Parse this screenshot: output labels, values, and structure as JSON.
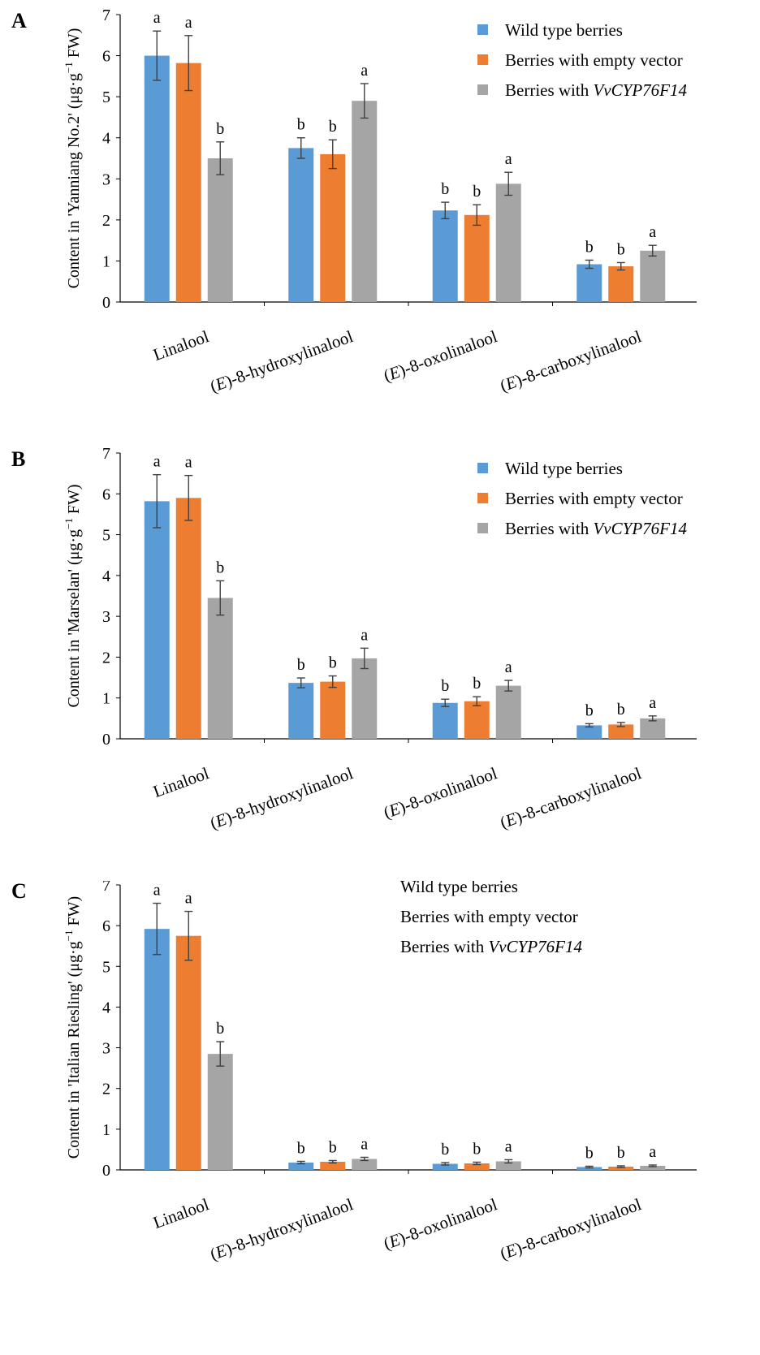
{
  "colors": {
    "wild_type": "#5b9bd5",
    "empty_vector": "#ed7d31",
    "vvcyp": "#a5a5a5",
    "axis": "#000000",
    "error_bar": "#404040"
  },
  "chart_data": [
    {
      "type": "bar",
      "panel": "A",
      "title": "",
      "ylabel": "Content in 'Yanniang No.2' (μg·g⁻¹ FW)",
      "ylabel_parts": [
        "Content in 'Yanniang No.2' (μg·g",
        "−1",
        " FW)"
      ],
      "xlabel": "",
      "ylim": [
        0,
        7
      ],
      "yticks": [
        "0",
        "1",
        "2",
        "3",
        "4",
        "5",
        "6",
        "7"
      ],
      "categories": [
        {
          "italic": "",
          "rest": "Linalool"
        },
        {
          "italic": "E",
          "rest": ")-8-hydroxylinalool"
        },
        {
          "italic": "E",
          "rest": ")-8-oxolinalool"
        },
        {
          "italic": "E",
          "rest": ")-8-carboxylinalool"
        }
      ],
      "series": [
        {
          "name": "Wild type berries",
          "values": [
            6.0,
            3.75,
            2.23,
            0.92
          ],
          "errors": [
            0.6,
            0.25,
            0.2,
            0.1
          ],
          "letters": [
            "a",
            "b",
            "b",
            "b"
          ]
        },
        {
          "name": "Berries with empty vector",
          "values": [
            5.82,
            3.6,
            2.12,
            0.87
          ],
          "errors": [
            0.67,
            0.35,
            0.25,
            0.09
          ],
          "letters": [
            "a",
            "b",
            "b",
            "b"
          ]
        },
        {
          "name": "Berries with VvCYP76F14",
          "values": [
            3.5,
            4.9,
            2.88,
            1.25
          ],
          "errors": [
            0.4,
            0.42,
            0.28,
            0.13
          ],
          "letters": [
            "b",
            "a",
            "a",
            "a"
          ]
        }
      ],
      "legend": [
        {
          "text": "Wild type berries",
          "italic": "",
          "swatch": true
        },
        {
          "text": "Berries with empty vector",
          "italic": "",
          "swatch": true
        },
        {
          "text": "Berries with ",
          "italic": "VvCYP76F14",
          "swatch": true
        }
      ],
      "legend_position": "top-right"
    },
    {
      "type": "bar",
      "panel": "B",
      "title": "",
      "ylabel": "Content in 'Marselan' (μg·g⁻¹ FW)",
      "ylabel_parts": [
        "Content in 'Marselan' (μg·g",
        "−1",
        " FW)"
      ],
      "xlabel": "",
      "ylim": [
        0,
        7
      ],
      "yticks": [
        "0",
        "1",
        "2",
        "3",
        "4",
        "5",
        "6",
        "7"
      ],
      "categories": [
        {
          "italic": "",
          "rest": "Linalool"
        },
        {
          "italic": "E",
          "rest": ")-8-hydroxylinalool"
        },
        {
          "italic": "E",
          "rest": ")-8-oxolinalool"
        },
        {
          "italic": "E",
          "rest": ")-8-carboxylinalool"
        }
      ],
      "series": [
        {
          "name": "Wild type berries",
          "values": [
            5.82,
            1.37,
            0.88,
            0.33
          ],
          "errors": [
            0.65,
            0.12,
            0.09,
            0.04
          ],
          "letters": [
            "a",
            "b",
            "b",
            "b"
          ]
        },
        {
          "name": "Berries with empty vector",
          "values": [
            5.9,
            1.4,
            0.92,
            0.35
          ],
          "errors": [
            0.55,
            0.14,
            0.11,
            0.05
          ],
          "letters": [
            "a",
            "b",
            "b",
            "b"
          ]
        },
        {
          "name": "Berries with VvCYP76F14",
          "values": [
            3.45,
            1.97,
            1.3,
            0.5
          ],
          "errors": [
            0.42,
            0.25,
            0.13,
            0.06
          ],
          "letters": [
            "b",
            "a",
            "a",
            "a"
          ]
        }
      ],
      "legend": [
        {
          "text": "Wild type berries",
          "italic": "",
          "swatch": true
        },
        {
          "text": "Berries with empty vector",
          "italic": "",
          "swatch": true
        },
        {
          "text": "Berries with ",
          "italic": "VvCYP76F14",
          "swatch": true
        }
      ],
      "legend_position": "top-right"
    },
    {
      "type": "bar",
      "panel": "C",
      "title": "",
      "ylabel": "Content in 'Italian Riesling' (μg·g⁻¹ FW)",
      "ylabel_parts": [
        "Content in 'Italian Riesling' (μg·g",
        "−1",
        " FW)"
      ],
      "xlabel": "",
      "ylim": [
        0,
        7
      ],
      "yticks": [
        "0",
        "1",
        "2",
        "3",
        "4",
        "5",
        "6",
        "7"
      ],
      "categories": [
        {
          "italic": "",
          "rest": "Linalool"
        },
        {
          "italic": "E",
          "rest": ")-8-hydroxylinalool"
        },
        {
          "italic": "E",
          "rest": ")-8-oxolinalool"
        },
        {
          "italic": "E",
          "rest": ")-8-carboxylinalool"
        }
      ],
      "series": [
        {
          "name": "Wild type berries",
          "values": [
            5.92,
            0.18,
            0.15,
            0.07
          ],
          "errors": [
            0.63,
            0.03,
            0.03,
            0.02
          ],
          "letters": [
            "a",
            "b",
            "b",
            "b"
          ]
        },
        {
          "name": "Berries with empty vector",
          "values": [
            5.75,
            0.2,
            0.16,
            0.08
          ],
          "errors": [
            0.6,
            0.03,
            0.03,
            0.02
          ],
          "letters": [
            "a",
            "b",
            "b",
            "b"
          ]
        },
        {
          "name": "Berries with VvCYP76F14",
          "values": [
            2.85,
            0.27,
            0.21,
            0.1
          ],
          "errors": [
            0.3,
            0.04,
            0.04,
            0.02
          ],
          "letters": [
            "b",
            "a",
            "a",
            "a"
          ]
        }
      ],
      "legend": [
        {
          "text": "Wild type berries",
          "italic": "",
          "swatch": false
        },
        {
          "text": "Berries with empty vector",
          "italic": "",
          "swatch": false
        },
        {
          "text": "Berries with ",
          "italic": "VvCYP76F14",
          "swatch": false
        }
      ],
      "legend_position": "top-right"
    }
  ]
}
